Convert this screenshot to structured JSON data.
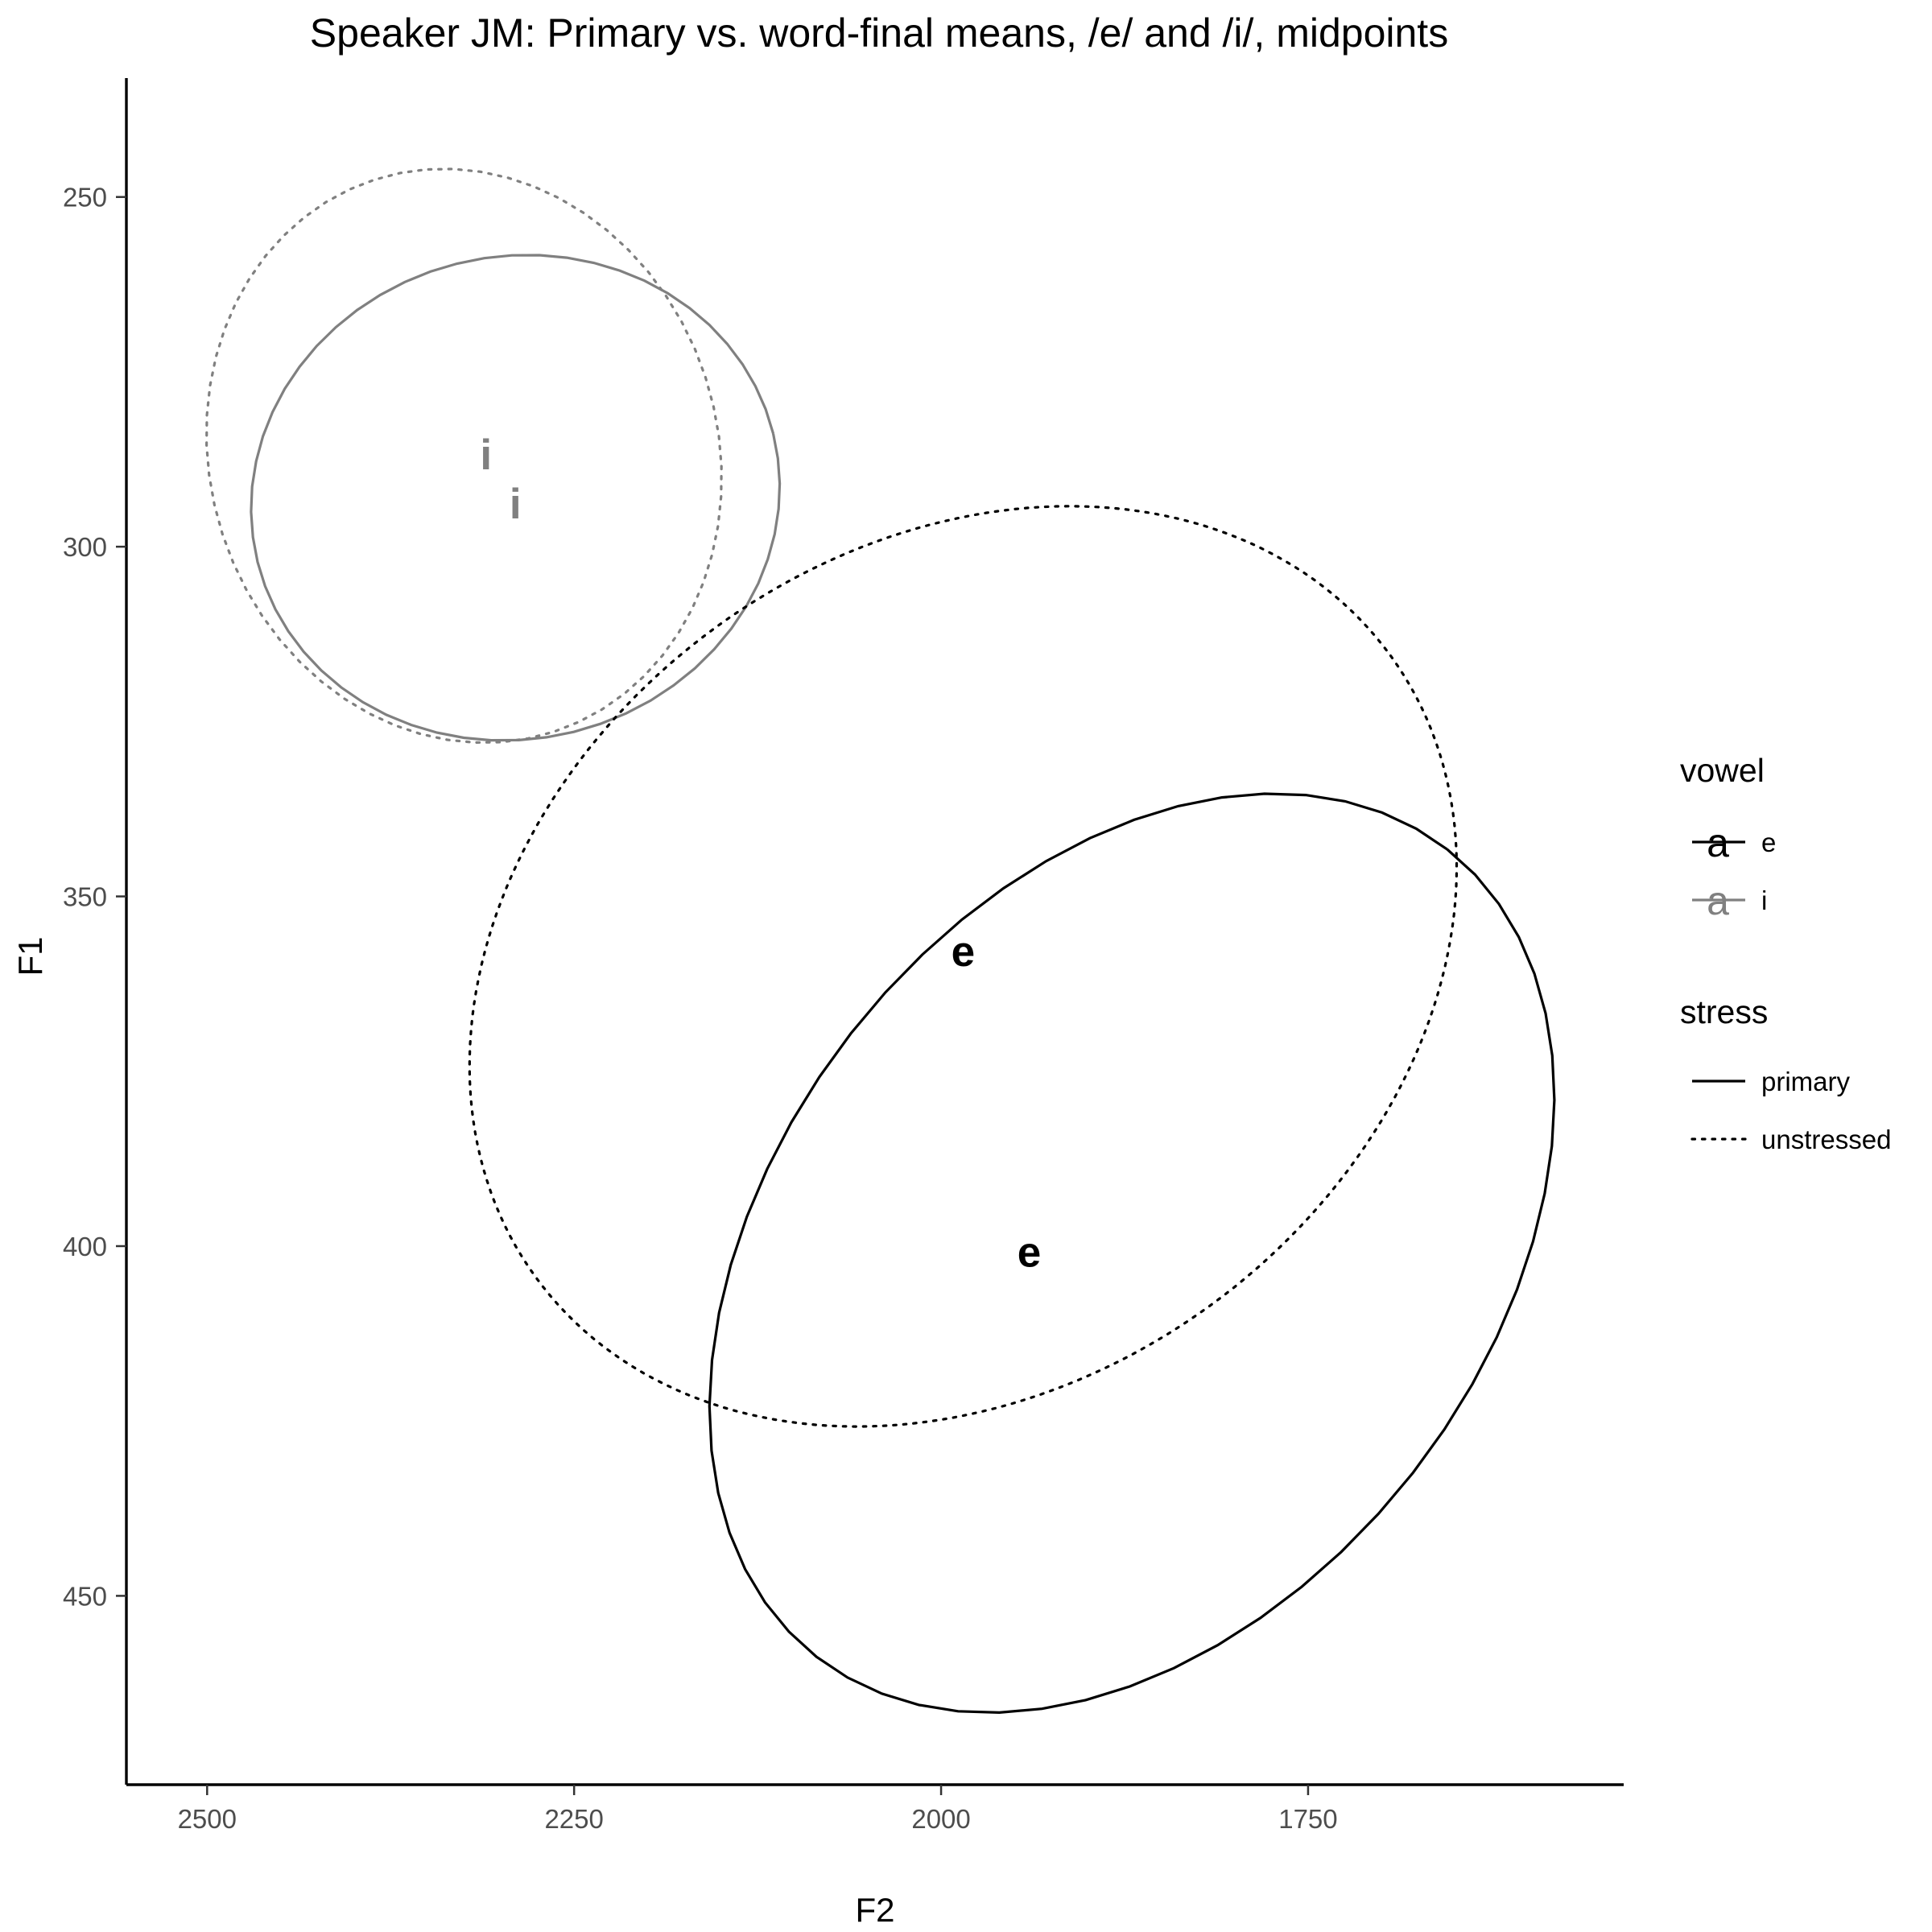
{
  "chart_data": {
    "type": "scatter",
    "title": "Speaker JM: Primary vs. word-final means, /e/ and /i/, midpoints",
    "xlabel": "F2",
    "ylabel": "F1",
    "x_reversed": true,
    "y_reversed": true,
    "xlim": [
      2555,
      1535
    ],
    "ylim": [
      233,
      477
    ],
    "x_ticks": [
      2500,
      2250,
      2000,
      1750
    ],
    "y_ticks": [
      250,
      300,
      350,
      400,
      450
    ],
    "grid": false,
    "means": [
      {
        "vowel": "i",
        "stress": "primary",
        "F2": 2290,
        "F1": 294,
        "label": "i"
      },
      {
        "vowel": "i",
        "stress": "unstressed",
        "F2": 2310,
        "F1": 287,
        "label": "i"
      },
      {
        "vowel": "e",
        "stress": "primary",
        "F2": 1940,
        "F1": 401,
        "label": "e"
      },
      {
        "vowel": "e",
        "stress": "unstressed",
        "F2": 1985,
        "F1": 358,
        "label": "e"
      }
    ],
    "ellipses": [
      {
        "vowel": "i",
        "stress": "primary",
        "cx": 2290,
        "cy": 293,
        "rx": 181,
        "ry": 34.5,
        "angle_deg": -14,
        "points": 60
      },
      {
        "vowel": "i",
        "stress": "unstressed",
        "cx": 2325,
        "cy": 287,
        "rx": 173,
        "ry": 41.5,
        "angle_deg": -18,
        "points": 60
      },
      {
        "vowel": "e",
        "stress": "primary",
        "cx": 1870,
        "cy": 401,
        "rx": 349,
        "ry": 51,
        "angle_deg": -52,
        "points": 60
      },
      {
        "vowel": "e",
        "stress": "unstressed",
        "cx": 1985,
        "cy": 360,
        "rx": 360,
        "ry": 60,
        "angle_deg": -36,
        "points": 220
      }
    ],
    "colors": {
      "e": "#000000",
      "i": "#808080"
    },
    "legend": {
      "position": "right",
      "vowel_title": "vowel",
      "vowel_items": [
        {
          "key": "e",
          "label": "e"
        },
        {
          "key": "i",
          "label": "i"
        }
      ],
      "stress_title": "stress",
      "stress_items": [
        {
          "key": "primary",
          "label": "primary"
        },
        {
          "key": "unstressed",
          "label": "unstressed"
        }
      ],
      "key_glyph": "a"
    }
  }
}
